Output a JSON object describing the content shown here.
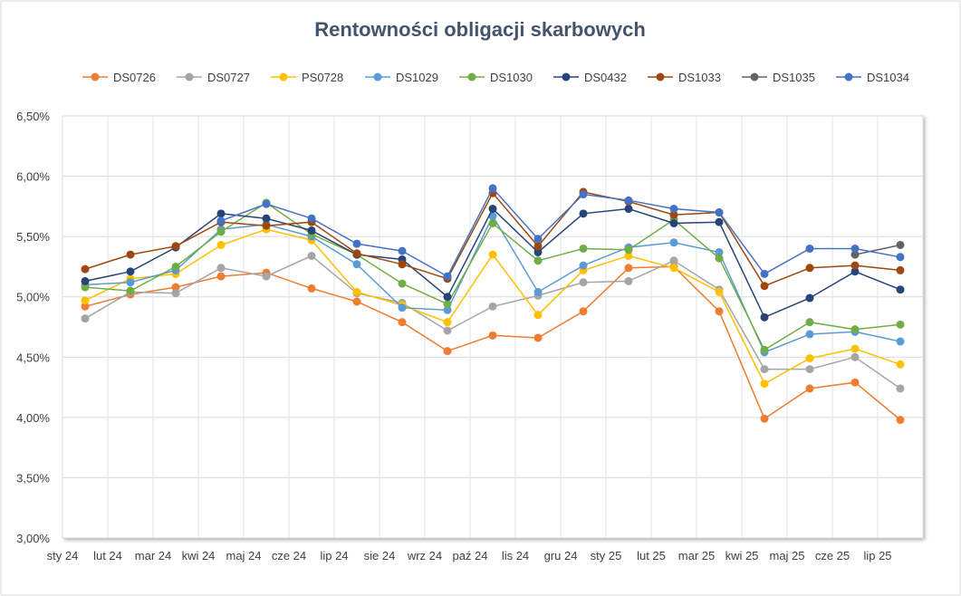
{
  "chart_data": {
    "type": "line",
    "title": "Rentowności obligacji skarbowych",
    "xlabel": "",
    "ylabel": "",
    "ylim": [
      3.0,
      6.5
    ],
    "y_ticks": [
      "3,00%",
      "3,50%",
      "4,00%",
      "4,50%",
      "5,00%",
      "5,50%",
      "6,00%",
      "6,50%"
    ],
    "x_labels": [
      "sty 24",
      "lut 24",
      "mar 24",
      "kwi 24",
      "maj 24",
      "cze 24",
      "lip 24",
      "sie 24",
      "wrz 24",
      "paź 24",
      "lis 24",
      "gru 24",
      "sty 25",
      "lut 25",
      "mar 25",
      "kwi 25",
      "maj 25",
      "cze 25",
      "lip 25"
    ],
    "grid": true,
    "legend_position": "top",
    "series": [
      {
        "name": "DS0726",
        "color": "#ed7d31",
        "values": [
          4.92,
          5.02,
          5.08,
          5.17,
          5.2,
          5.07,
          4.96,
          4.79,
          4.55,
          4.68,
          4.66,
          4.88,
          5.24,
          5.25,
          4.88,
          3.99,
          4.24,
          4.29,
          3.98
        ]
      },
      {
        "name": "DS0727",
        "color": "#a5a5a5",
        "values": [
          4.82,
          5.04,
          5.03,
          5.24,
          5.17,
          5.34,
          5.03,
          4.95,
          4.72,
          4.92,
          5.01,
          5.12,
          5.13,
          5.3,
          5.06,
          4.4,
          4.4,
          4.5,
          4.24
        ]
      },
      {
        "name": "PS0728",
        "color": "#ffc000",
        "values": [
          4.97,
          5.15,
          5.19,
          5.43,
          5.56,
          5.47,
          5.04,
          4.93,
          4.79,
          5.35,
          4.85,
          5.22,
          5.34,
          5.24,
          5.04,
          4.28,
          4.49,
          4.57,
          4.44
        ]
      },
      {
        "name": "DS1029",
        "color": "#5b9bd5",
        "values": [
          5.1,
          5.12,
          5.22,
          5.56,
          5.6,
          5.5,
          5.27,
          4.91,
          4.89,
          5.67,
          5.04,
          5.26,
          5.41,
          5.45,
          5.37,
          4.54,
          4.69,
          4.71,
          4.63
        ]
      },
      {
        "name": "DS1030",
        "color": "#70ad47",
        "values": [
          5.08,
          5.05,
          5.25,
          5.54,
          5.78,
          5.52,
          5.35,
          5.11,
          4.94,
          5.61,
          5.3,
          5.4,
          5.39,
          5.64,
          5.32,
          4.56,
          4.79,
          4.73,
          4.77
        ]
      },
      {
        "name": "DS0432",
        "color": "#264478",
        "values": [
          5.13,
          5.21,
          5.41,
          5.69,
          5.65,
          5.55,
          5.35,
          5.31,
          5.0,
          5.73,
          5.37,
          5.69,
          5.73,
          5.61,
          5.62,
          4.83,
          4.99,
          5.21,
          5.06
        ]
      },
      {
        "name": "DS1033",
        "color": "#9e480e",
        "values": [
          5.23,
          5.35,
          5.42,
          5.62,
          5.59,
          5.62,
          5.36,
          5.27,
          5.15,
          5.86,
          5.42,
          5.87,
          5.79,
          5.68,
          5.7,
          5.09,
          5.24,
          5.26,
          5.22
        ]
      },
      {
        "name": "DS1035",
        "color": "#636363",
        "values": [
          null,
          null,
          null,
          null,
          null,
          null,
          null,
          null,
          null,
          null,
          null,
          null,
          null,
          null,
          null,
          null,
          null,
          5.35,
          5.43
        ]
      },
      {
        "name": "DS1034",
        "color": "#4472c4",
        "values": [
          null,
          null,
          null,
          5.63,
          5.77,
          5.65,
          5.44,
          5.38,
          5.17,
          5.9,
          5.48,
          5.85,
          5.8,
          5.73,
          5.7,
          5.19,
          5.4,
          5.4,
          5.33
        ]
      }
    ]
  }
}
